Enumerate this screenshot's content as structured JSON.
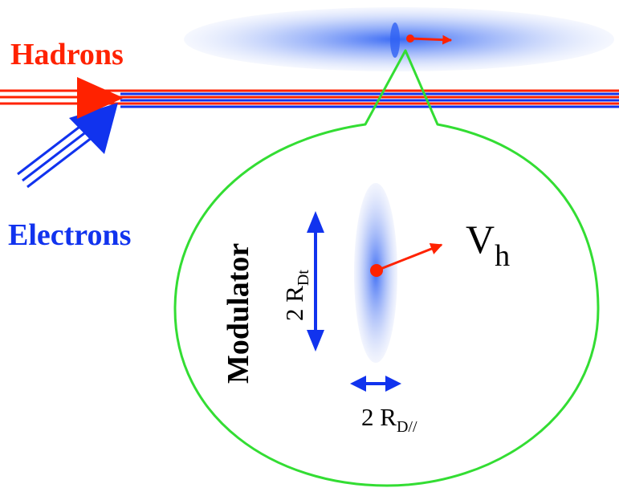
{
  "labels": {
    "hadrons": "Hadrons",
    "electrons": "Electrons",
    "modulator": "Modulator",
    "velocity": {
      "main": "V",
      "sub": "h"
    },
    "transverse_diameter": {
      "prefix": "2 R",
      "sub": "Dt"
    },
    "longitudinal_diameter": {
      "prefix": "2 R",
      "sub": "D//"
    }
  },
  "colors": {
    "hadron": "#ff2200",
    "electron": "#1133ee",
    "modulator_outline": "#33dd33",
    "cloud": "#3a6cf5",
    "text": "#000000"
  }
}
